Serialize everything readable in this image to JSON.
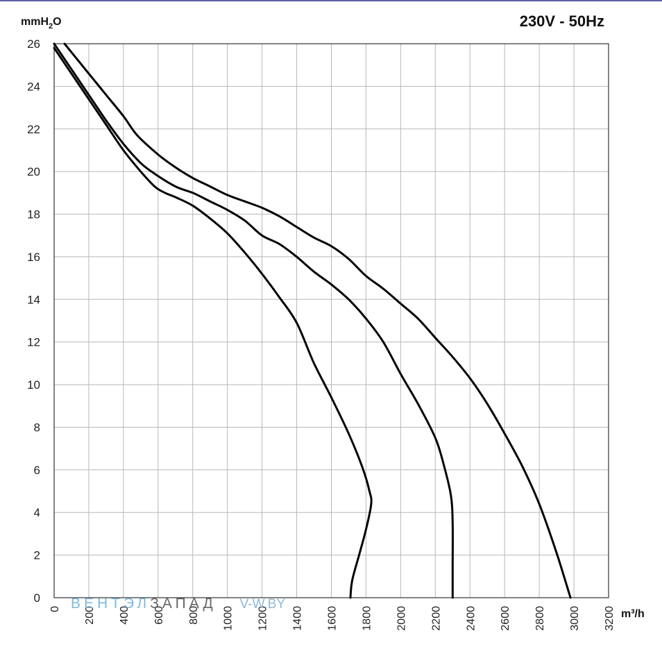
{
  "chart_data": {
    "type": "line",
    "title": "230V - 50Hz",
    "ylabel_prefix": "mmH",
    "ylabel_sub": "2",
    "ylabel_suffix": "O",
    "xlabel": "m³/h",
    "xlim": [
      0,
      3200
    ],
    "ylim": [
      0,
      26
    ],
    "x_ticks": [
      "0",
      "200",
      "400",
      "600",
      "800",
      "1000",
      "1200",
      "1400",
      "1600",
      "1800",
      "2000",
      "2200",
      "2400",
      "2600",
      "2800",
      "3000",
      "3200"
    ],
    "y_ticks": [
      "0",
      "2",
      "4",
      "6",
      "8",
      "10",
      "12",
      "14",
      "16",
      "18",
      "20",
      "22",
      "24",
      "26"
    ],
    "grid": true,
    "series": [
      {
        "values": [
          [
            0,
            25.8
          ],
          [
            100,
            24.6
          ],
          [
            200,
            23.4
          ],
          [
            300,
            22.2
          ],
          [
            400,
            21.0
          ],
          [
            500,
            20.0
          ],
          [
            580,
            19.3
          ],
          [
            640,
            19.0
          ],
          [
            700,
            18.8
          ],
          [
            800,
            18.4
          ],
          [
            900,
            17.8
          ],
          [
            1000,
            17.1
          ],
          [
            1100,
            16.2
          ],
          [
            1200,
            15.2
          ],
          [
            1300,
            14.1
          ],
          [
            1400,
            12.9
          ],
          [
            1500,
            11.0
          ],
          [
            1600,
            9.4
          ],
          [
            1700,
            7.7
          ],
          [
            1780,
            6.1
          ],
          [
            1820,
            5.0
          ],
          [
            1830,
            4.4
          ],
          [
            1800,
            3.2
          ],
          [
            1760,
            2.0
          ],
          [
            1720,
            0.8
          ],
          [
            1710,
            0.0
          ]
        ]
      },
      {
        "values": [
          [
            0,
            26.0
          ],
          [
            100,
            24.8
          ],
          [
            200,
            23.6
          ],
          [
            300,
            22.4
          ],
          [
            400,
            21.3
          ],
          [
            500,
            20.4
          ],
          [
            580,
            19.9
          ],
          [
            700,
            19.3
          ],
          [
            800,
            19.0
          ],
          [
            900,
            18.6
          ],
          [
            1000,
            18.2
          ],
          [
            1100,
            17.7
          ],
          [
            1200,
            17.0
          ],
          [
            1300,
            16.6
          ],
          [
            1400,
            16.0
          ],
          [
            1500,
            15.3
          ],
          [
            1600,
            14.7
          ],
          [
            1700,
            14.0
          ],
          [
            1800,
            13.1
          ],
          [
            1900,
            12.0
          ],
          [
            2000,
            10.5
          ],
          [
            2100,
            9.1
          ],
          [
            2200,
            7.5
          ],
          [
            2250,
            6.2
          ],
          [
            2290,
            4.8
          ],
          [
            2300,
            3.5
          ],
          [
            2300,
            1.5
          ],
          [
            2300,
            0.0
          ]
        ]
      },
      {
        "values": [
          [
            60,
            26.0
          ],
          [
            200,
            24.6
          ],
          [
            300,
            23.6
          ],
          [
            400,
            22.6
          ],
          [
            480,
            21.7
          ],
          [
            600,
            20.8
          ],
          [
            700,
            20.2
          ],
          [
            800,
            19.7
          ],
          [
            900,
            19.3
          ],
          [
            1000,
            18.9
          ],
          [
            1100,
            18.6
          ],
          [
            1200,
            18.3
          ],
          [
            1300,
            17.9
          ],
          [
            1400,
            17.4
          ],
          [
            1500,
            16.9
          ],
          [
            1600,
            16.5
          ],
          [
            1700,
            15.9
          ],
          [
            1800,
            15.1
          ],
          [
            1900,
            14.5
          ],
          [
            2000,
            13.8
          ],
          [
            2100,
            13.1
          ],
          [
            2200,
            12.2
          ],
          [
            2300,
            11.3
          ],
          [
            2400,
            10.3
          ],
          [
            2500,
            9.1
          ],
          [
            2600,
            7.7
          ],
          [
            2700,
            6.2
          ],
          [
            2800,
            4.4
          ],
          [
            2900,
            2.1
          ],
          [
            2980,
            0.0
          ]
        ]
      }
    ]
  },
  "watermark": {
    "part1": "ВЕНТЭЛ",
    "part2": "ЗАПАД",
    "part3": "V-W.BY",
    "color1": "#7fb9dd",
    "color2": "#666666",
    "color3": "#8fb8d8"
  },
  "colors": {
    "grid": "#b7b7b7",
    "axis": "#333333",
    "curve": "#000000",
    "accent_rule": "#5b5ea6"
  }
}
